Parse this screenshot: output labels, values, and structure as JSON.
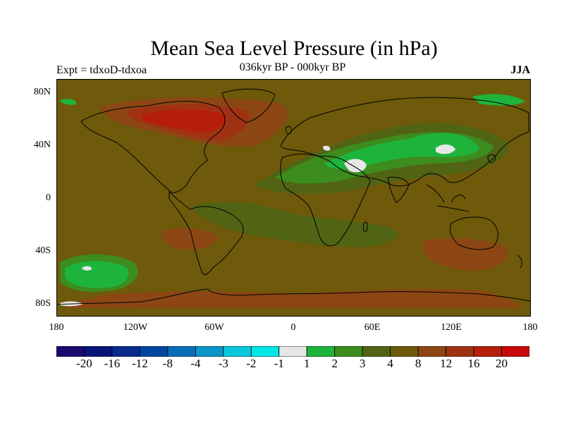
{
  "title": "Mean Sea Level Pressure (in hPa)",
  "subtitle_left": "Expt = tdxoD-tdxoa",
  "subtitle_center": "036kyr BP - 000kyr BP",
  "subtitle_right": "JJA",
  "lat_labels": [
    "80N",
    "40N",
    "0",
    "40S",
    "80S"
  ],
  "lon_labels": [
    "180",
    "120W",
    "60W",
    "0",
    "60E",
    "120E",
    "180"
  ],
  "colorbar": {
    "colors": [
      "#1a0a6e",
      "#0a1478",
      "#0a2a8c",
      "#0046a0",
      "#0a6eb4",
      "#0a96c8",
      "#0ac8dc",
      "#00e6e6",
      "#e6e6e6",
      "#1eb43c",
      "#3c8c1e",
      "#506414",
      "#6e5a0a",
      "#8c4614",
      "#a03214",
      "#b41e0a",
      "#c80a0a"
    ],
    "labels": [
      "-20",
      "-16",
      "-12",
      "-8",
      "-4",
      "-3",
      "-2",
      "-1",
      "1",
      "2",
      "3",
      "4",
      "8",
      "12",
      "16",
      "20"
    ]
  },
  "map": {
    "background_color": "#6e5a0a",
    "coastline_color": "#000000"
  }
}
